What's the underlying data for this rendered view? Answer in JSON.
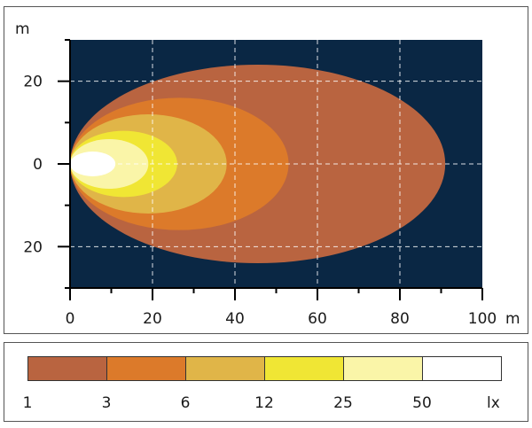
{
  "y_axis": {
    "unit": "m",
    "ticks": [
      {
        "value": 20,
        "label": "20"
      },
      {
        "value": 0,
        "label": "0"
      },
      {
        "value": -20,
        "label": "20"
      }
    ]
  },
  "x_axis": {
    "unit": "m",
    "ticks": [
      {
        "value": 0,
        "label": "0"
      },
      {
        "value": 20,
        "label": "20"
      },
      {
        "value": 40,
        "label": "40"
      },
      {
        "value": 60,
        "label": "60"
      },
      {
        "value": 80,
        "label": "80"
      },
      {
        "value": 100,
        "label": "100"
      }
    ]
  },
  "chart_data": {
    "type": "heatmap",
    "xlim": [
      0,
      100
    ],
    "ylim": [
      -30,
      30
    ],
    "grid": true,
    "background_color": "#0a2744",
    "isolux_contours": [
      {
        "lux": 1,
        "reach_m": 91,
        "half_width_m": 24,
        "color": "#b96440"
      },
      {
        "lux": 3,
        "reach_m": 53,
        "half_width_m": 16,
        "color": "#dc7a2a"
      },
      {
        "lux": 6,
        "reach_m": 38,
        "half_width_m": 12,
        "color": "#e0b548"
      },
      {
        "lux": 12,
        "reach_m": 26,
        "half_width_m": 8,
        "color": "#f0e634"
      },
      {
        "lux": 25,
        "reach_m": 19,
        "half_width_m": 6,
        "color": "#faf5a8"
      },
      {
        "lux": 50,
        "reach_m": 11,
        "half_width_m": 3,
        "color": "#ffffff"
      }
    ]
  },
  "legend": {
    "unit": "lx",
    "items": [
      {
        "label": "1",
        "color": "#b96440"
      },
      {
        "label": "3",
        "color": "#dc7a2a"
      },
      {
        "label": "6",
        "color": "#e0b548"
      },
      {
        "label": "12",
        "color": "#f0e634"
      },
      {
        "label": "25",
        "color": "#faf5a8"
      },
      {
        "label": "50",
        "color": "#ffffff"
      }
    ]
  }
}
